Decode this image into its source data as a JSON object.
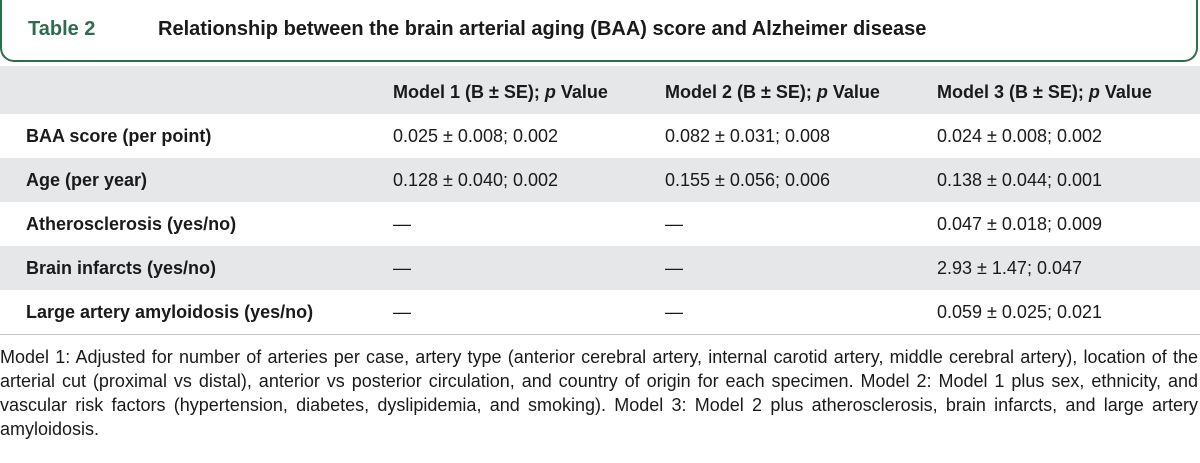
{
  "table": {
    "label": "Table 2",
    "title": "Relationship between the brain arterial aging (BAA) score and Alzheimer disease",
    "columns": [
      "",
      "Model 1 (B ± SE); p Value",
      "Model 2 (B ± SE); p Value",
      "Model 3 (B ± SE); p Value"
    ],
    "rows": [
      [
        "BAA score (per point)",
        "0.025 ± 0.008; 0.002",
        "0.082 ± 0.031; 0.008",
        "0.024 ± 0.008; 0.002"
      ],
      [
        "Age (per year)",
        "0.128 ± 0.040; 0.002",
        "0.155 ± 0.056; 0.006",
        "0.138 ± 0.044; 0.001"
      ],
      [
        "Atherosclerosis (yes/no)",
        "—",
        "—",
        "0.047 ± 0.018; 0.009"
      ],
      [
        "Brain infarcts (yes/no)",
        "—",
        "—",
        "2.93 ± 1.47; 0.047"
      ],
      [
        "Large artery amyloidosis (yes/no)",
        "—",
        "—",
        "0.059 ± 0.025; 0.021"
      ]
    ],
    "footnote": "Model 1: Adjusted for number of arteries per case, artery type (anterior cerebral artery, internal carotid artery, middle cerebral artery), location of the arterial cut (proximal vs distal), anterior vs posterior circulation, and country of origin for each specimen. Model 2: Model 1 plus sex, ethnicity, and vascular risk factors (hypertension, diabetes, dyslipidemia, and smoking). Model 3: Model 2 plus atherosclerosis, brain infarcts, and large artery amyloidosis."
  },
  "colors": {
    "accent": "#2e6b4f",
    "shade": "#e6e7e8"
  }
}
